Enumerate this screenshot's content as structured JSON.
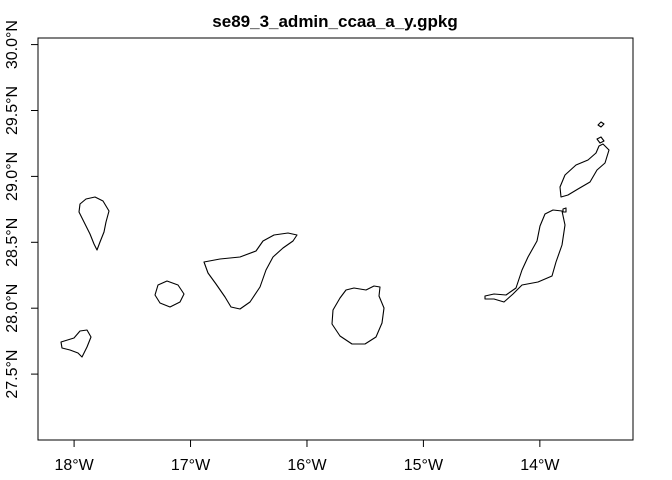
{
  "map": {
    "title": "se89_3_admin_ccaa_a_y.gpkg",
    "x_ticks": [
      {
        "value": -18,
        "label": "18°W"
      },
      {
        "value": -17,
        "label": "17°W"
      },
      {
        "value": -16,
        "label": "16°W"
      },
      {
        "value": -15,
        "label": "15°W"
      },
      {
        "value": -14,
        "label": "14°W"
      }
    ],
    "y_ticks": [
      {
        "value": 27.5,
        "label": "27.5°N"
      },
      {
        "value": 28.0,
        "label": "28.0°N"
      },
      {
        "value": 28.5,
        "label": "28.5°N"
      },
      {
        "value": 29.0,
        "label": "29.0°N"
      },
      {
        "value": 29.5,
        "label": "29.5°N"
      },
      {
        "value": 30.0,
        "label": "30.0°N"
      }
    ],
    "xlim": [
      -18.31,
      -13.2
    ],
    "ylim": [
      27.0,
      30.05
    ],
    "outline_color": "#000000",
    "background_color": "#ffffff"
  }
}
